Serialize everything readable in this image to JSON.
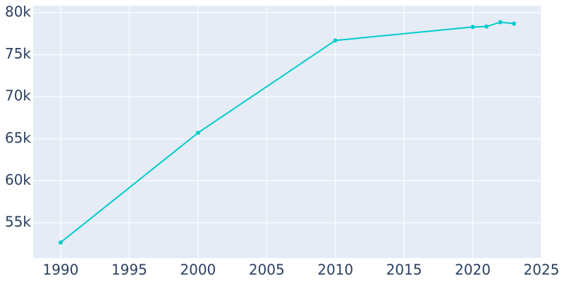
{
  "chart_data": {
    "type": "line",
    "x": [
      1990,
      2000,
      2010,
      2020,
      2021,
      2022,
      2023
    ],
    "series": [
      {
        "color": "#00cccc",
        "values": [
          52650,
          65700,
          76700,
          78300,
          78350,
          78870,
          78700
        ]
      }
    ],
    "xlim": [
      1988,
      2025
    ],
    "xticks": [
      1990,
      1995,
      2000,
      2005,
      2010,
      2015,
      2020,
      2025
    ],
    "ylim": [
      50800,
      80840
    ],
    "yticks": [
      {
        "value": 55000,
        "label": "55k"
      },
      {
        "value": 60000,
        "label": "60k"
      },
      {
        "value": 65000,
        "label": "65k"
      },
      {
        "value": 70000,
        "label": "70k"
      },
      {
        "value": 75000,
        "label": "75k"
      },
      {
        "value": 80000,
        "label": "80k"
      }
    ],
    "grid": true
  }
}
